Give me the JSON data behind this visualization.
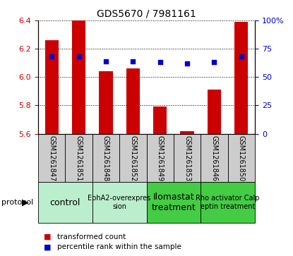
{
  "title": "GDS5670 / 7981161",
  "samples": [
    "GSM1261847",
    "GSM1261851",
    "GSM1261848",
    "GSM1261852",
    "GSM1261849",
    "GSM1261853",
    "GSM1261846",
    "GSM1261850"
  ],
  "transformed_count": [
    6.26,
    6.4,
    6.04,
    6.06,
    5.79,
    5.62,
    5.91,
    6.39
  ],
  "percentile_rank": [
    68,
    68,
    64,
    64,
    63,
    62,
    63,
    68
  ],
  "ylim_left": [
    5.6,
    6.4
  ],
  "ylim_right": [
    0,
    100
  ],
  "yticks_left": [
    5.6,
    5.8,
    6.0,
    6.2,
    6.4
  ],
  "yticks_right": [
    0,
    25,
    50,
    75,
    100
  ],
  "bar_color": "#cc0000",
  "dot_color": "#0000cc",
  "bar_width": 0.5,
  "groups": [
    {
      "label": "control",
      "indices": [
        0,
        1
      ],
      "color": "#bbeecc",
      "font_size": 9
    },
    {
      "label": "EphA2-overexpres\nsion",
      "indices": [
        2,
        3
      ],
      "color": "#bbeecc",
      "font_size": 7
    },
    {
      "label": "Ilomastat\ntreatment",
      "indices": [
        4,
        5
      ],
      "color": "#44cc44",
      "font_size": 9
    },
    {
      "label": "Rho activator Calp\neptin treatment",
      "indices": [
        6,
        7
      ],
      "color": "#44cc44",
      "font_size": 7
    }
  ],
  "legend_bar_label": "transformed count",
  "legend_dot_label": "percentile rank within the sample",
  "protocol_label": "protocol",
  "left_axis_color": "#cc0000",
  "right_axis_color": "#0000cc",
  "sample_box_color": "#cccccc",
  "tick_fontsize": 8,
  "title_fontsize": 10,
  "sample_fontsize": 7,
  "legend_fontsize": 7.5
}
